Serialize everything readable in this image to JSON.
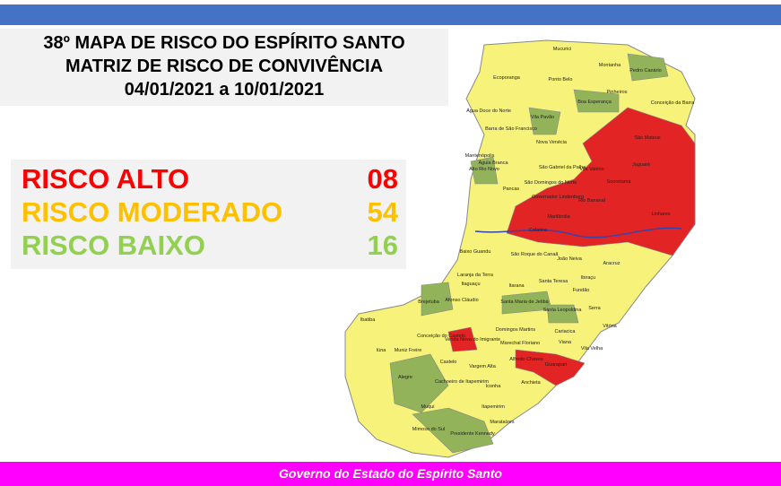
{
  "header": {
    "title_lines": [
      "38º MAPA DE RISCO DO ESPÍRITO SANTO",
      "MATRIZ DE RISCO DE CONVIVÊNCIA",
      "04/01/2021 a 10/01/2021"
    ]
  },
  "legend": {
    "items": [
      {
        "label": "RISCO ALTO",
        "count": "08"
      },
      {
        "label": "RISCO MODERADO",
        "count": "54"
      },
      {
        "label": "RISCO BAIXO",
        "count": "16"
      }
    ]
  },
  "map": {
    "municipalities": [
      "Mucurici",
      "Montanha",
      "Pedro Canário",
      "Ecoporanga",
      "Ponto Belo",
      "Pinheiros",
      "Conceição da Barra",
      "Água Doce do Norte",
      "Barra de São Francisco",
      "Vila Pavão",
      "Boa Esperança",
      "São Mateus",
      "Nova Venécia",
      "Mantenópolis",
      "Alto Rio Novo",
      "Águia Branca",
      "São Gabriel da Palha",
      "Vila Valério",
      "Jaguaré",
      "Pancas",
      "São Domingos do Norte",
      "Rio Bananal",
      "Sooretama",
      "Governador Lindenberg",
      "Marilândia",
      "Colatina",
      "Linhares",
      "Baixo Guandu",
      "São Roque do Canaã",
      "João Neiva",
      "Aracruz",
      "Ibiraçu",
      "Laranja da Terra",
      "Itarana",
      "Santa Teresa",
      "Fundão",
      "Afonso Cláudio",
      "Itaguaçu",
      "Santa Maria de Jetibá",
      "Santa Leopoldina",
      "Serra",
      "Brejetuba",
      "Ibatiba",
      "Venda Nova do Imigrante",
      "Domingos Martins",
      "Cariacica",
      "Vitória",
      "Conceição do Castelo",
      "Iúna",
      "Marechal Floriano",
      "Viana",
      "Vila Velha",
      "Muniz Freire",
      "Castelo",
      "Alfredo Chaves",
      "Guarapari",
      "Alegre",
      "Cachoeiro de Itapemirim",
      "Anchieta",
      "Vargem Alta",
      "Iconha",
      "Muqui",
      "Mimoso do Sul",
      "Presidente Kennedy",
      "Marataízes",
      "Itapemirim"
    ]
  },
  "footer": {
    "text": "Governo do Estado do Espírito Santo"
  }
}
